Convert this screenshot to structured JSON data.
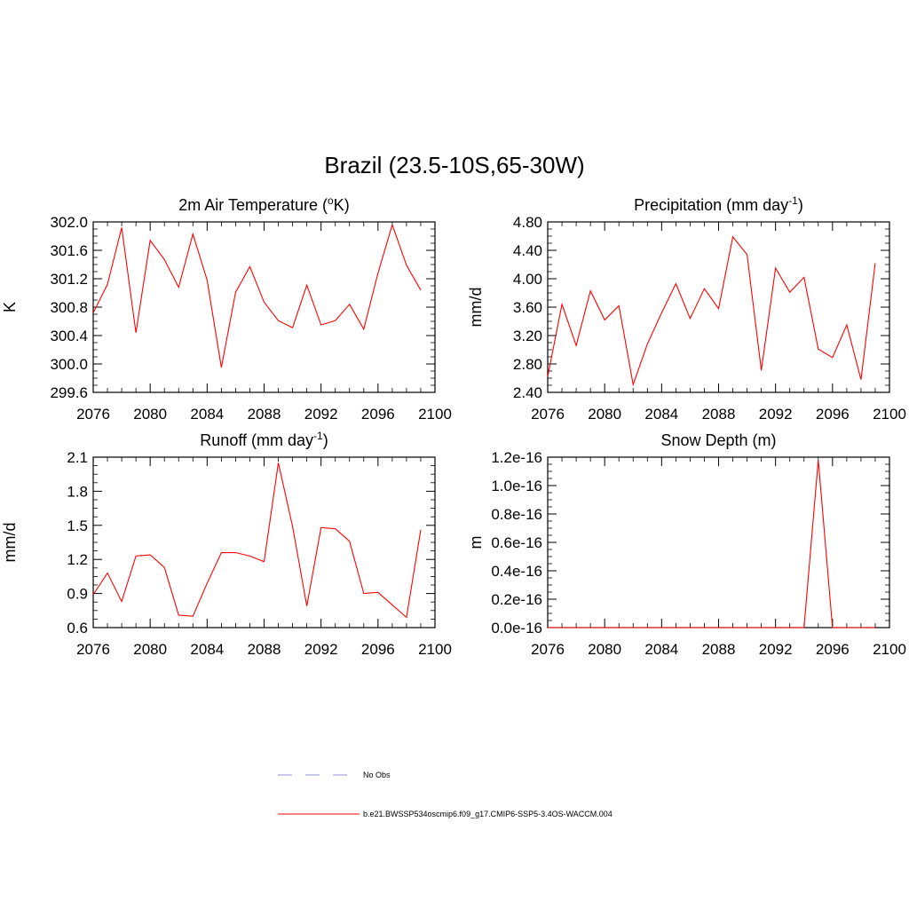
{
  "figure": {
    "title": "Brazil (23.5-10S,65-30W)"
  },
  "colors": {
    "series": "#ff0000",
    "obs": "#8f8fe0",
    "axis": "#000000"
  },
  "legend": {
    "items": [
      {
        "label": "No Obs",
        "style": "dashed",
        "color": "#8f8fe0"
      },
      {
        "label": "b.e21.BWSSP534oscmip6.f09_g17.CMIP6-SSP5-3.4OS-WACCM.004",
        "style": "solid",
        "color": "#ff0000"
      }
    ]
  },
  "chart_data": [
    {
      "type": "line",
      "title_main": "2m Air Temperature (",
      "title_sup": "o",
      "title_tail": "K)",
      "ylabel": "K",
      "xlabel": "",
      "xlim": [
        2076,
        2100
      ],
      "ylim": [
        299.6,
        302.0
      ],
      "xticks": [
        2076,
        2080,
        2084,
        2088,
        2092,
        2096,
        2100
      ],
      "xtick_labels": [
        "2076",
        "2080",
        "2084",
        "2088",
        "2092",
        "2096",
        "2100"
      ],
      "yticks": [
        299.6,
        300.0,
        300.4,
        300.8,
        301.2,
        301.6,
        302.0
      ],
      "ytick_labels": [
        "299.6",
        "300.0",
        "300.4",
        "300.8",
        "301.2",
        "301.6",
        "302.0"
      ],
      "series": [
        {
          "x": [
            2076,
            2077,
            2078,
            2079,
            2080,
            2081,
            2082,
            2083,
            2084,
            2085,
            2086,
            2087,
            2088,
            2089,
            2090,
            2091,
            2092,
            2093,
            2094,
            2095,
            2096,
            2097,
            2098,
            2099
          ],
          "y": [
            300.72,
            301.12,
            301.92,
            300.44,
            301.74,
            301.47,
            301.08,
            301.83,
            301.18,
            299.95,
            301.01,
            301.37,
            300.87,
            300.61,
            300.51,
            301.11,
            300.55,
            300.61,
            300.84,
            300.49,
            301.28,
            301.96,
            301.39,
            301.04
          ]
        }
      ]
    },
    {
      "type": "line",
      "title_main": "Precipitation (mm day",
      "title_sup": "-1",
      "title_tail": ")",
      "ylabel": "mm/d",
      "xlabel": "",
      "xlim": [
        2076,
        2100
      ],
      "ylim": [
        2.4,
        4.8
      ],
      "xticks": [
        2076,
        2080,
        2084,
        2088,
        2092,
        2096,
        2100
      ],
      "xtick_labels": [
        "2076",
        "2080",
        "2084",
        "2088",
        "2092",
        "2096",
        "2100"
      ],
      "yticks": [
        2.4,
        2.8,
        3.2,
        3.6,
        4.0,
        4.4,
        4.8
      ],
      "ytick_labels": [
        "2.40",
        "2.80",
        "3.20",
        "3.60",
        "4.00",
        "4.40",
        "4.80"
      ],
      "series": [
        {
          "x": [
            2076,
            2077,
            2078,
            2079,
            2080,
            2081,
            2082,
            2083,
            2084,
            2085,
            2086,
            2087,
            2088,
            2089,
            2090,
            2091,
            2092,
            2093,
            2094,
            2095,
            2096,
            2097,
            2098,
            2099
          ],
          "y": [
            2.62,
            3.64,
            3.06,
            3.83,
            3.42,
            3.62,
            2.51,
            3.08,
            3.52,
            3.93,
            3.44,
            3.86,
            3.58,
            4.59,
            4.34,
            2.71,
            4.15,
            3.81,
            4.02,
            3.01,
            2.89,
            3.35,
            2.58,
            4.22
          ]
        }
      ]
    },
    {
      "type": "line",
      "title_main": "Runoff (mm day",
      "title_sup": "-1",
      "title_tail": ")",
      "ylabel": "mm/d",
      "xlabel": "",
      "xlim": [
        2076,
        2100
      ],
      "ylim": [
        0.6,
        2.1
      ],
      "xticks": [
        2076,
        2080,
        2084,
        2088,
        2092,
        2096,
        2100
      ],
      "xtick_labels": [
        "2076",
        "2080",
        "2084",
        "2088",
        "2092",
        "2096",
        "2100"
      ],
      "yticks": [
        0.6,
        0.9,
        1.2,
        1.5,
        1.8,
        2.1
      ],
      "ytick_labels": [
        "0.6",
        "0.9",
        "1.2",
        "1.5",
        "1.8",
        "2.1"
      ],
      "series": [
        {
          "x": [
            2076,
            2077,
            2078,
            2079,
            2080,
            2081,
            2082,
            2083,
            2084,
            2085,
            2086,
            2087,
            2088,
            2089,
            2090,
            2091,
            2092,
            2093,
            2094,
            2095,
            2096,
            2097,
            2098,
            2099
          ],
          "y": [
            0.89,
            1.08,
            0.83,
            1.23,
            1.24,
            1.13,
            0.71,
            0.7,
            0.99,
            1.26,
            1.26,
            1.23,
            1.18,
            2.05,
            1.49,
            0.79,
            1.48,
            1.47,
            1.36,
            0.9,
            0.91,
            0.8,
            0.69,
            1.46
          ]
        }
      ]
    },
    {
      "type": "line",
      "title_main": "Snow Depth (m)",
      "title_sup": "",
      "title_tail": "",
      "ylabel": "m",
      "xlabel": "",
      "xlim": [
        2076,
        2100
      ],
      "ylim": [
        0.0,
        1.2
      ],
      "xticks": [
        2076,
        2080,
        2084,
        2088,
        2092,
        2096,
        2100
      ],
      "xtick_labels": [
        "2076",
        "2080",
        "2084",
        "2088",
        "2092",
        "2096",
        "2100"
      ],
      "yticks": [
        0.0,
        0.2,
        0.4,
        0.6,
        0.8,
        1.0,
        1.2
      ],
      "ytick_labels": [
        "0.0e-16",
        "0.2e-16",
        "0.4e-16",
        "0.6e-16",
        "0.8e-16",
        "1.0e-16",
        "1.2e-16"
      ],
      "series": [
        {
          "x": [
            2076,
            2077,
            2078,
            2079,
            2080,
            2081,
            2082,
            2083,
            2084,
            2085,
            2086,
            2087,
            2088,
            2089,
            2090,
            2091,
            2092,
            2093,
            2094,
            2095,
            2096,
            2097,
            2098,
            2099
          ],
          "y": [
            0,
            0,
            0,
            0,
            0,
            0,
            0,
            0,
            0,
            0,
            0,
            0,
            0,
            0,
            0,
            0,
            0,
            0,
            0,
            1.18,
            0,
            0,
            0,
            0
          ]
        }
      ]
    }
  ]
}
